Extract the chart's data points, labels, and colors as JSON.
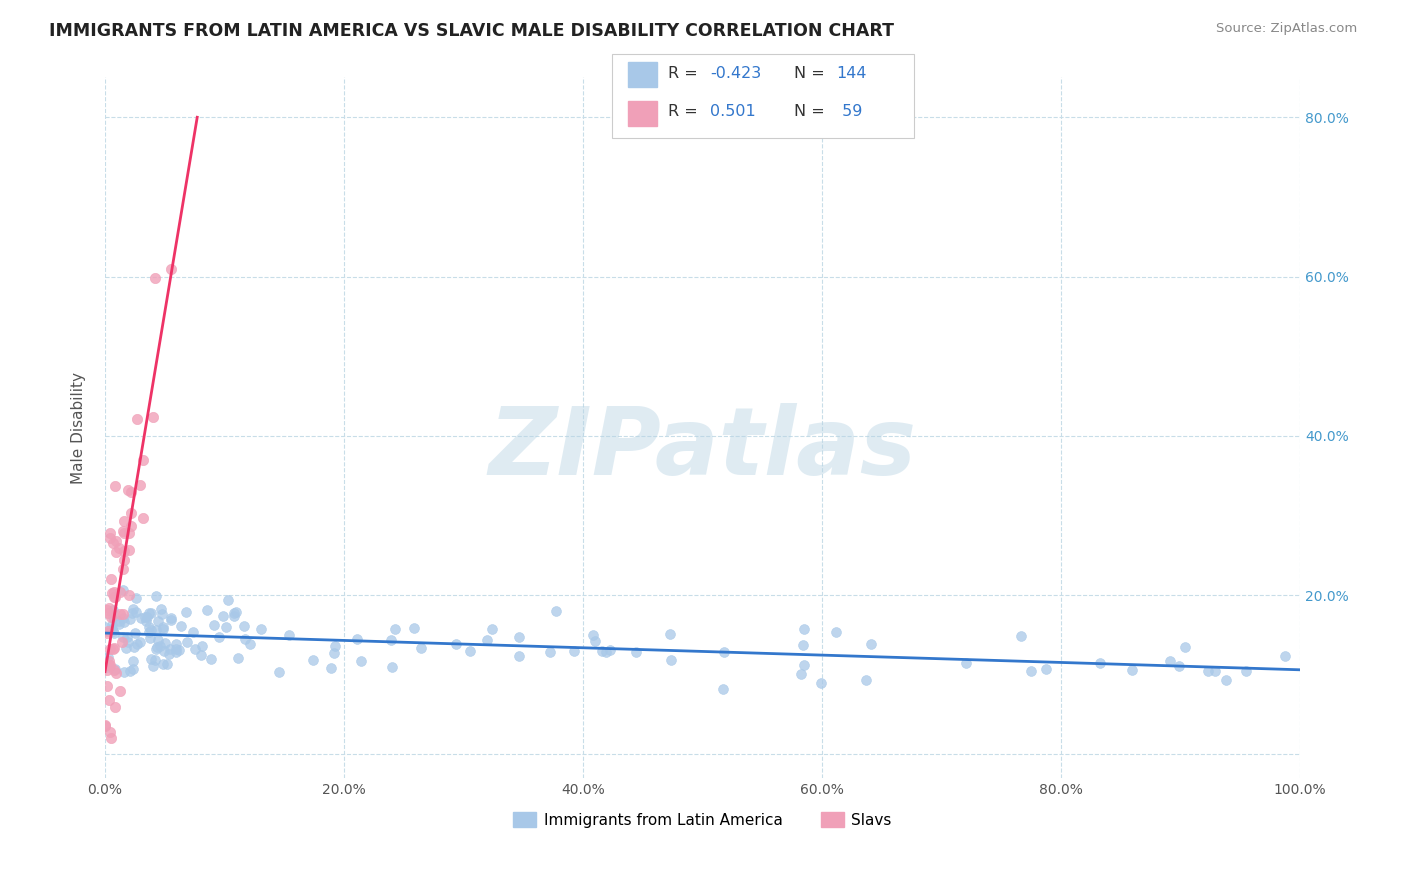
{
  "title": "IMMIGRANTS FROM LATIN AMERICA VS SLAVIC MALE DISABILITY CORRELATION CHART",
  "source": "Source: ZipAtlas.com",
  "xlabel": "",
  "ylabel": "Male Disability",
  "legend_label1": "Immigrants from Latin America",
  "legend_label2": "Slavs",
  "R1": -0.423,
  "N1": 144,
  "R2": 0.501,
  "N2": 59,
  "color1": "#a8c8e8",
  "color2": "#f0a0b8",
  "line_color1": "#3377cc",
  "line_color2": "#ee3366",
  "background_color": "#ffffff",
  "grid_color": "#c8dde8",
  "title_color": "#222222",
  "watermark": "ZIPatlas",
  "xlim": [
    0.0,
    1.0
  ],
  "ylim": [
    -0.03,
    0.85
  ],
  "xticks": [
    0.0,
    0.2,
    0.4,
    0.6,
    0.8,
    1.0
  ],
  "xtick_labels": [
    "0.0%",
    "20.0%",
    "40.0%",
    "60.0%",
    "80.0%",
    "100.0%"
  ],
  "ytick_positions": [
    0.0,
    0.2,
    0.4,
    0.6,
    0.8
  ],
  "right_ytick_labels": [
    "20.0%",
    "40.0%",
    "60.0%",
    "80.0%"
  ]
}
